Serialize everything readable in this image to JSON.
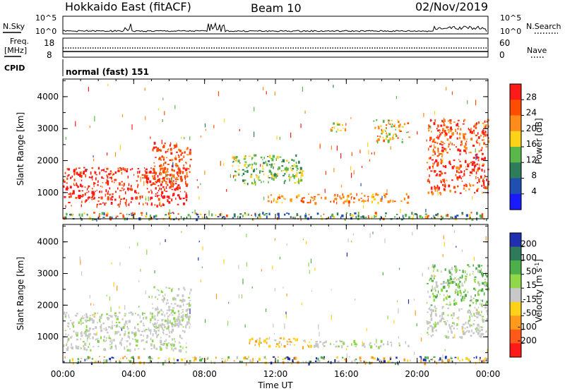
{
  "header": {
    "station": "Hokkaido East (fitACF)",
    "beam": "Beam 10",
    "date": "02/Nov/2019"
  },
  "status_panels": {
    "noise": {
      "left_label": "N.Sky",
      "left_ticks": [
        "10^5",
        "10^0"
      ],
      "right_label": "N.Search",
      "right_ticks": [
        "10^5",
        "10^0"
      ]
    },
    "freq": {
      "left_label_1": "Freq.",
      "left_label_2": "[MHz]",
      "left_ticks": [
        "18",
        "8"
      ],
      "right_label": "Nave",
      "right_ticks": [
        "60",
        "0"
      ]
    },
    "cpid": {
      "label": "CPID",
      "value": "normal (fast) 151"
    }
  },
  "power_colorbar": {
    "label": "Power [dB]",
    "ticks": [
      "28",
      "24",
      "20",
      "16",
      "12",
      "8",
      "4"
    ],
    "colors": [
      "#ff1a1a",
      "#ff4d00",
      "#ff8c1a",
      "#ffd21a",
      "#5ab84a",
      "#2e7d5a",
      "#1f4fb0",
      "#1a1aff"
    ]
  },
  "velocity_colorbar": {
    "label_main": "Velocity [m s",
    "label_sup": "-1",
    "label_end": "]",
    "ticks": [
      "200",
      "100",
      "50",
      "15",
      "-15",
      "-50",
      "-100",
      "-200"
    ],
    "colors": [
      "#1f2fb0",
      "#2f7a5a",
      "#4caf4a",
      "#8fd84a",
      "#c8c8c8",
      "#ffd21a",
      "#ff9a1a",
      "#ff5a1a",
      "#ff1a1a"
    ]
  },
  "chart_data": [
    {
      "type": "heatmap",
      "title": "Power",
      "ylabel": "Slant Range [km]",
      "xlabel": "",
      "xlim_hours": [
        0,
        24
      ],
      "ylim_km": [
        180,
        4550
      ],
      "yticks": [
        "1000",
        "2000",
        "3000",
        "4000"
      ],
      "colorbar_label": "Power [dB]",
      "echo_regions": [
        {
          "t0": 0.0,
          "t1": 7.0,
          "r0": 600,
          "r1": 1800,
          "level": "28+"
        },
        {
          "t0": 5.0,
          "t1": 7.2,
          "r0": 1300,
          "r1": 2600,
          "level": "24-28"
        },
        {
          "t0": 11.5,
          "t1": 19.5,
          "r0": 700,
          "r1": 1000,
          "level": "16-24"
        },
        {
          "t0": 9.5,
          "t1": 13.5,
          "r0": 1300,
          "r1": 2200,
          "level": "8-16"
        },
        {
          "t0": 15.0,
          "t1": 16.0,
          "r0": 2900,
          "r1": 3200,
          "level": "12-20"
        },
        {
          "t0": 17.5,
          "t1": 19.5,
          "r0": 2600,
          "r1": 3300,
          "level": "16-28"
        },
        {
          "t0": 20.5,
          "t1": 24.0,
          "r0": 1000,
          "r1": 3300,
          "level": "20-28"
        },
        {
          "t0": 0.0,
          "t1": 24.0,
          "r0": 180,
          "r1": 400,
          "level": "4-24"
        }
      ]
    },
    {
      "type": "heatmap",
      "title": "Velocity",
      "ylabel": "Slant Range [km]",
      "xlabel": "Time UT",
      "xlim_hours": [
        0,
        24
      ],
      "ylim_km": [
        180,
        4550
      ],
      "yticks": [
        "1000",
        "2000",
        "3000",
        "4000"
      ],
      "xticks": [
        "00:00",
        "04:00",
        "08:00",
        "12:00",
        "16:00",
        "20:00",
        "00:00"
      ],
      "colorbar_label": "Velocity [m s-1]",
      "echo_regions": [
        {
          "t0": 0.0,
          "t1": 7.0,
          "r0": 600,
          "r1": 1800,
          "level": "-15 to 15"
        },
        {
          "t0": 5.0,
          "t1": 7.2,
          "r0": 1300,
          "r1": 2600,
          "level": "-15 to 15"
        },
        {
          "t0": 10.5,
          "t1": 14.0,
          "r0": 700,
          "r1": 1000,
          "level": "-15 to -50"
        },
        {
          "t0": 14.0,
          "t1": 19.5,
          "r0": 700,
          "r1": 900,
          "level": "-15 to 15"
        },
        {
          "t0": 20.5,
          "t1": 24.0,
          "r0": 1000,
          "r1": 2000,
          "level": "-15 to 15"
        },
        {
          "t0": 20.5,
          "t1": 24.0,
          "r0": 2000,
          "r1": 3300,
          "level": "15-50"
        },
        {
          "t0": 0.0,
          "t1": 24.0,
          "r0": 180,
          "r1": 400,
          "level": "-50 to 50"
        }
      ]
    }
  ]
}
